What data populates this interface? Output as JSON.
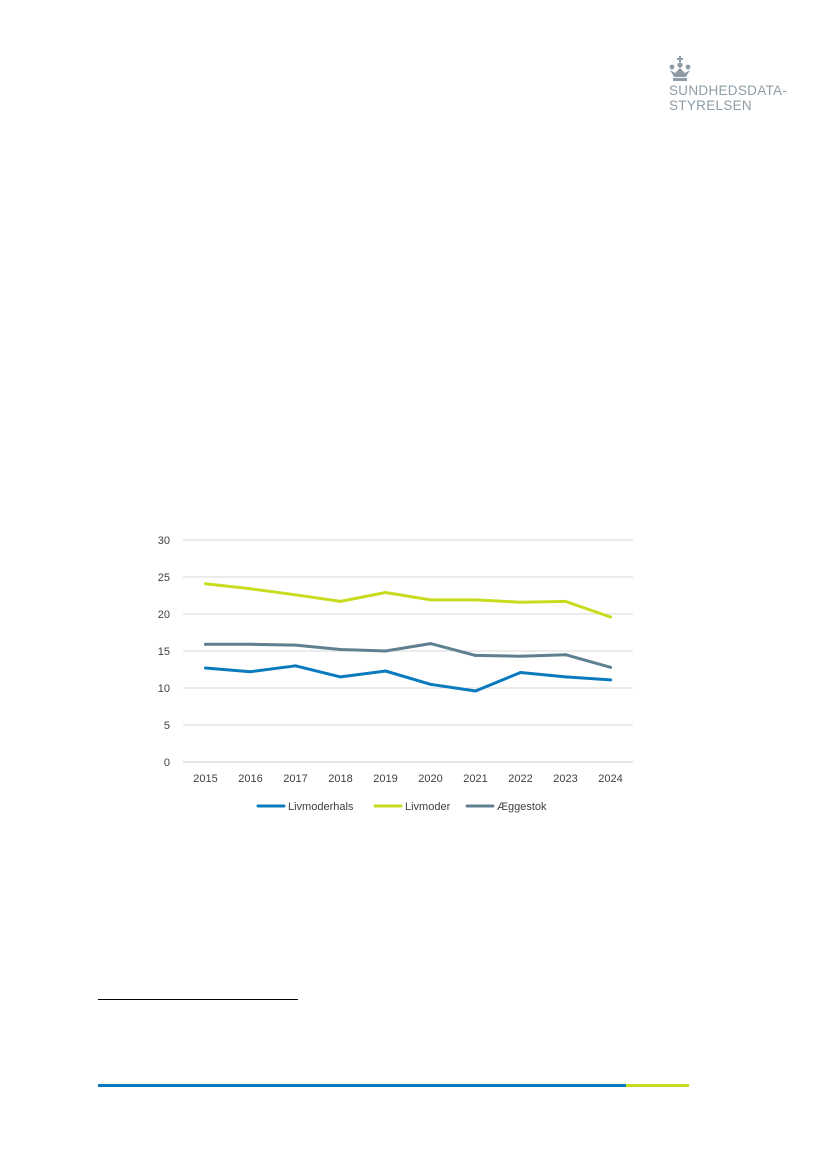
{
  "logo": {
    "line1": "SUNDHEDSDATA-",
    "line2": "STYRELSEN",
    "icon": "crown-icon",
    "color": "#8d9ca6"
  },
  "chart_data": {
    "type": "line",
    "title": "",
    "xlabel": "",
    "ylabel": "",
    "ylim": [
      0,
      30
    ],
    "yticks": [
      0,
      5,
      10,
      15,
      20,
      25,
      30
    ],
    "grid": true,
    "legend_position": "bottom",
    "categories": [
      "2015",
      "2016",
      "2017",
      "2018",
      "2019",
      "2020",
      "2021",
      "2022",
      "2023",
      "2024"
    ],
    "series": [
      {
        "name": "Livmoderhals",
        "color": "#0a7abf",
        "values": [
          12.7,
          12.2,
          13.0,
          11.5,
          12.3,
          10.5,
          9.6,
          12.1,
          11.5,
          11.1
        ]
      },
      {
        "name": "Livmoder",
        "color": "#c8dc1f",
        "values": [
          24.1,
          23.4,
          22.6,
          21.7,
          22.9,
          21.9,
          21.9,
          21.6,
          21.7,
          19.6
        ]
      },
      {
        "name": "Æggestok",
        "color": "#5f8090",
        "values": [
          15.9,
          15.9,
          15.8,
          15.2,
          15.0,
          16.0,
          14.4,
          14.3,
          14.5,
          12.8
        ]
      }
    ]
  },
  "footer": {
    "bar_blue": "#0a7abf",
    "bar_green": "#c8dc1f"
  }
}
